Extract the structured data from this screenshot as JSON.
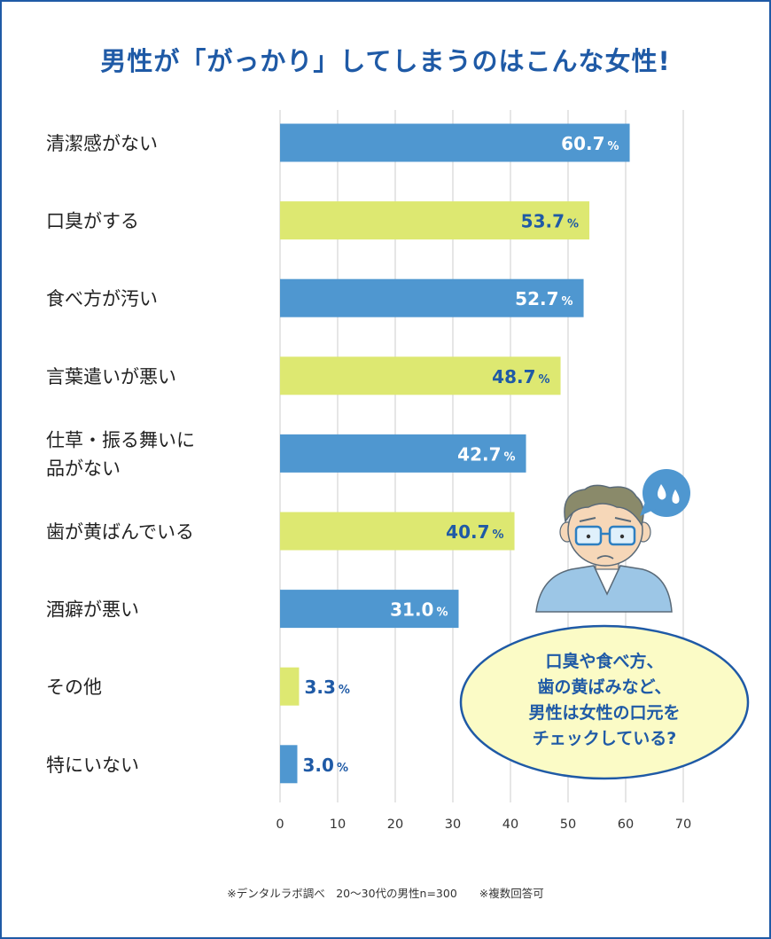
{
  "chart_data": {
    "type": "bar",
    "orientation": "horizontal",
    "title": "男性が「がっかり」してしまうのはこんな女性!",
    "categories": [
      "清潔感がない",
      "口臭がする",
      "食べ方が汚い",
      "言葉遣いが悪い",
      "仕草・振る舞いに\n品がない",
      "歯が黄ばんでいる",
      "酒癖が悪い",
      "その他",
      "特にいない"
    ],
    "values": [
      60.7,
      53.7,
      52.7,
      48.7,
      42.7,
      40.7,
      31.0,
      3.3,
      3.0
    ],
    "value_labels": [
      "60.7",
      "53.7",
      "52.7",
      "48.7",
      "42.7",
      "40.7",
      "31.0",
      "3.3",
      "3.0"
    ],
    "unit": "%",
    "xlim": [
      0,
      70
    ],
    "xticks": [
      0,
      10,
      20,
      30,
      40,
      50,
      60,
      70
    ],
    "grid": "vertical",
    "colors": {
      "bar_a": "#4f97d0",
      "bar_b": "#dde871",
      "label_dark": "#1f5aa6",
      "grid": "#cccccc"
    }
  },
  "header": {
    "title": "男性が「がっかり」してしまうのはこんな女性!"
  },
  "callout": {
    "lines": [
      "口臭や食べ方、",
      "歯の黄ばみなど、",
      "男性は女性の口元を",
      "チェックしている?"
    ]
  },
  "footer": {
    "note": "※デンタルラボ調べ　20〜30代の男性n=300　　※複数回答可"
  },
  "icons": {
    "illustration": "worried-man-icon",
    "drop": "sweat-drop-icon"
  }
}
